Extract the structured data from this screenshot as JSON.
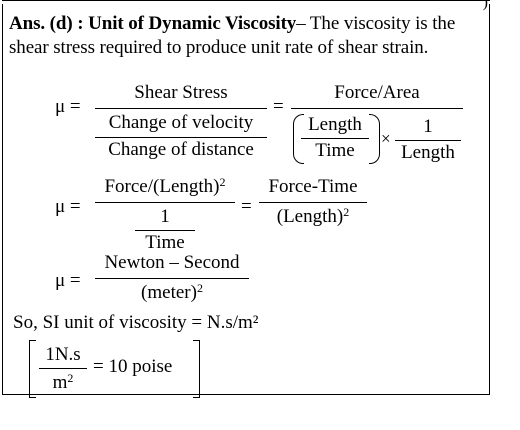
{
  "answer": {
    "label": "Ans. (d) : Unit of Dynamic Viscosity",
    "text": "– The viscosity is the shear stress required to produce unit rate of shear strain."
  },
  "eq1": {
    "mu": "μ =",
    "f1_num": "Shear Stress",
    "f1_den_num": "Change of velocity",
    "f1_den_den": "Change of distance",
    "eqsign": "=",
    "f2_num": "Force/Area",
    "p_num": "Length",
    "p_den": "Time",
    "times": "×",
    "q_num": "1",
    "q_den": "Length"
  },
  "eq2": {
    "mu": "μ =",
    "f1_num_text": "Force/(Length)",
    "f1_num_exp": "2",
    "f1_den_num": "1",
    "f1_den_den": "Time",
    "eqsign": "=",
    "f2_num": "Force-Time",
    "f2_den_text": "(Length)",
    "f2_den_exp": "2"
  },
  "eq3": {
    "mu": "μ =",
    "num": "Newton – Second",
    "den_text": "(meter)",
    "den_exp": "2"
  },
  "si_line": "So, SI unit of viscosity = N.s/m²",
  "box": {
    "num": "1N.s",
    "den_text": "m",
    "den_exp": "2",
    "rhs": "= 10 poise"
  },
  "corner_fragment": ")"
}
